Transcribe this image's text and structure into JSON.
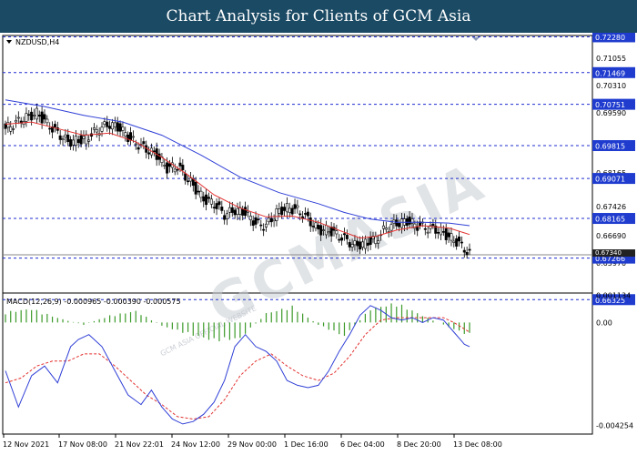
{
  "banner": {
    "title": "Chart Analysis for Clients of GCM Asia"
  },
  "colors": {
    "banner_bg": "#1b4a64",
    "bull_candle": "#ffffff",
    "bear_candle": "#000000",
    "ma_fast": "#e2312f",
    "ma_slow": "#2f3fd6",
    "level_line": "#1f2ccf",
    "price_box": "#1f3ccf",
    "histogram": "#3c9a2a",
    "macd_line": "#2f3fd6",
    "signal_line": "#e2312f",
    "bid_box": "#222222"
  },
  "watermark": {
    "text": "GCMASIA",
    "sub": "GCM ASIA OFFICIAL WEBSITE"
  },
  "chart_data": [
    {
      "type": "candlestick",
      "title": "NZDUSD,H4",
      "ylim": [
        0.66475,
        0.7231
      ],
      "price_ticks": [
        "0.71770",
        "0.71055",
        "0.70310",
        "0.69590",
        "0.68870",
        "0.68165",
        "0.67426",
        "0.66690",
        "0.65970"
      ],
      "levels": [
        {
          "label": "0.72280",
          "value": 0.7228
        },
        {
          "label": "0.71469",
          "value": 0.71469
        },
        {
          "label": "0.70751",
          "value": 0.70751
        },
        {
          "label": "0.69815",
          "value": 0.69815
        },
        {
          "label": "0.69071",
          "value": 0.69071
        },
        {
          "label": "0.68165",
          "value": 0.68165
        },
        {
          "label": "0.67266",
          "value": 0.67266
        },
        {
          "label": "0.66325",
          "value": 0.66325
        }
      ],
      "current_price": {
        "value": 0.6734,
        "label": "0.67340"
      },
      "x_labels": [
        "12 Nov 2021",
        "17 Nov 08:00",
        "21 Nov 22:01",
        "24 Nov 12:00",
        "29 Nov 00:00",
        "1 Dec 16:00",
        "6 Dec 04:00",
        "8 Dec 20:00",
        "13 Dec 08:00"
      ],
      "close_path": [
        [
          0,
          0.702
        ],
        [
          6,
          0.704
        ],
        [
          12,
          0.7055
        ],
        [
          18,
          0.702
        ],
        [
          24,
          0.699
        ],
        [
          30,
          0.6995
        ],
        [
          36,
          0.702
        ],
        [
          40,
          0.703
        ],
        [
          44,
          0.702
        ],
        [
          48,
          0.6995
        ],
        [
          52,
          0.698
        ],
        [
          58,
          0.696
        ],
        [
          62,
          0.693
        ],
        [
          66,
          0.6935
        ],
        [
          72,
          0.689
        ],
        [
          76,
          0.686
        ],
        [
          80,
          0.685
        ],
        [
          84,
          0.6825
        ],
        [
          88,
          0.6835
        ],
        [
          92,
          0.683
        ],
        [
          96,
          0.6805
        ],
        [
          100,
          0.68
        ],
        [
          104,
          0.683
        ],
        [
          108,
          0.684
        ],
        [
          112,
          0.6835
        ],
        [
          116,
          0.6815
        ],
        [
          120,
          0.679
        ],
        [
          124,
          0.679
        ],
        [
          130,
          0.677
        ],
        [
          134,
          0.6755
        ],
        [
          138,
          0.676
        ],
        [
          142,
          0.677
        ],
        [
          146,
          0.6795
        ],
        [
          150,
          0.6805
        ],
        [
          154,
          0.681
        ],
        [
          158,
          0.68
        ],
        [
          162,
          0.6795
        ],
        [
          166,
          0.679
        ],
        [
          170,
          0.6775
        ],
        [
          174,
          0.676
        ],
        [
          178,
          0.6735
        ]
      ],
      "wick_size": 0.0014,
      "ma_fast": [
        [
          0,
          0.703
        ],
        [
          10,
          0.7035
        ],
        [
          20,
          0.702
        ],
        [
          30,
          0.7005
        ],
        [
          40,
          0.701
        ],
        [
          50,
          0.699
        ],
        [
          60,
          0.6955
        ],
        [
          70,
          0.6915
        ],
        [
          80,
          0.687
        ],
        [
          90,
          0.684
        ],
        [
          100,
          0.682
        ],
        [
          110,
          0.6822
        ],
        [
          120,
          0.6808
        ],
        [
          130,
          0.6785
        ],
        [
          136,
          0.6772
        ],
        [
          142,
          0.6776
        ],
        [
          150,
          0.679
        ],
        [
          160,
          0.68
        ],
        [
          170,
          0.6795
        ],
        [
          178,
          0.678
        ]
      ],
      "ma_slow": [
        [
          0,
          0.7085
        ],
        [
          15,
          0.707
        ],
        [
          30,
          0.705
        ],
        [
          45,
          0.7035
        ],
        [
          60,
          0.7005
        ],
        [
          75,
          0.696
        ],
        [
          90,
          0.691
        ],
        [
          105,
          0.6875
        ],
        [
          120,
          0.685
        ],
        [
          130,
          0.683
        ],
        [
          140,
          0.6815
        ],
        [
          150,
          0.6808
        ],
        [
          160,
          0.6808
        ],
        [
          170,
          0.6806
        ],
        [
          178,
          0.68
        ]
      ]
    },
    {
      "type": "line",
      "title": "MACD(12,26,9) -0.000965 -0.000390 -0.000575",
      "ylim": [
        -0.00462,
        0.00122
      ],
      "ticks": [
        "0.001134",
        "0.00",
        "-0.004254"
      ],
      "histogram": [
        [
          0,
          0.00045
        ],
        [
          10,
          0.0006
        ],
        [
          20,
          0.0002
        ],
        [
          30,
          -0.0001
        ],
        [
          40,
          0.0003
        ],
        [
          50,
          0.0005
        ],
        [
          60,
          -0.00015
        ],
        [
          70,
          -0.0005
        ],
        [
          80,
          -0.0008
        ],
        [
          90,
          -0.0007
        ],
        [
          100,
          0.0004
        ],
        [
          110,
          0.0007
        ],
        [
          120,
          -0.0001
        ],
        [
          130,
          -0.0006
        ],
        [
          140,
          0.0006
        ],
        [
          150,
          0.00085
        ],
        [
          160,
          0.0003
        ],
        [
          170,
          -0.0002
        ],
        [
          178,
          -0.00057
        ]
      ],
      "macd_line": [
        [
          0,
          -0.002
        ],
        [
          5,
          -0.0035
        ],
        [
          10,
          -0.0022
        ],
        [
          15,
          -0.0018
        ],
        [
          20,
          -0.0025
        ],
        [
          25,
          -0.001
        ],
        [
          28,
          -0.0007
        ],
        [
          32,
          -0.0005
        ],
        [
          37,
          -0.001
        ],
        [
          42,
          -0.002
        ],
        [
          47,
          -0.003
        ],
        [
          52,
          -0.0034
        ],
        [
          56,
          -0.0028
        ],
        [
          60,
          -0.0035
        ],
        [
          64,
          -0.004
        ],
        [
          68,
          -0.0042
        ],
        [
          72,
          -0.0041
        ],
        [
          76,
          -0.0038
        ],
        [
          80,
          -0.0033
        ],
        [
          84,
          -0.0024
        ],
        [
          88,
          -0.001
        ],
        [
          92,
          -0.0005
        ],
        [
          96,
          -0.001
        ],
        [
          100,
          -0.0012
        ],
        [
          104,
          -0.0016
        ],
        [
          108,
          -0.0024
        ],
        [
          112,
          -0.0026
        ],
        [
          116,
          -0.0027
        ],
        [
          120,
          -0.0026
        ],
        [
          124,
          -0.002
        ],
        [
          128,
          -0.0012
        ],
        [
          132,
          -0.0005
        ],
        [
          136,
          0.0003
        ],
        [
          140,
          0.0007
        ],
        [
          144,
          0.0005
        ],
        [
          148,
          0.0002
        ],
        [
          152,
          0.0001
        ],
        [
          156,
          0.0002
        ],
        [
          160,
          0.0
        ],
        [
          164,
          0.0002
        ],
        [
          168,
          0.0001
        ],
        [
          172,
          -0.0004
        ],
        [
          176,
          -0.0009
        ],
        [
          178,
          -0.001
        ]
      ],
      "signal_line": [
        [
          0,
          -0.0025
        ],
        [
          6,
          -0.0023
        ],
        [
          12,
          -0.0018
        ],
        [
          18,
          -0.0016
        ],
        [
          24,
          -0.0016
        ],
        [
          30,
          -0.0013
        ],
        [
          36,
          -0.0013
        ],
        [
          42,
          -0.0018
        ],
        [
          48,
          -0.0024
        ],
        [
          54,
          -0.003
        ],
        [
          60,
          -0.0034
        ],
        [
          66,
          -0.0039
        ],
        [
          72,
          -0.004
        ],
        [
          78,
          -0.0039
        ],
        [
          84,
          -0.0032
        ],
        [
          90,
          -0.0022
        ],
        [
          96,
          -0.0016
        ],
        [
          102,
          -0.0013
        ],
        [
          108,
          -0.0018
        ],
        [
          114,
          -0.0022
        ],
        [
          120,
          -0.0024
        ],
        [
          126,
          -0.0021
        ],
        [
          132,
          -0.0014
        ],
        [
          138,
          -0.0005
        ],
        [
          144,
          0.0001
        ],
        [
          150,
          0.0002
        ],
        [
          156,
          0.0002
        ],
        [
          162,
          0.0002
        ],
        [
          168,
          0.0002
        ],
        [
          172,
          0.0
        ],
        [
          178,
          -0.0004
        ]
      ]
    }
  ]
}
